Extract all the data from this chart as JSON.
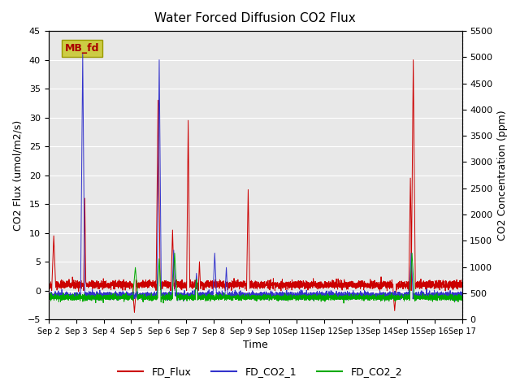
{
  "title": "Water Forced Diffusion CO2 Flux",
  "xlabel": "Time",
  "ylabel_left": "CO2 Flux (umol/m2/s)",
  "ylabel_right": "CO2 Concentration (ppm)",
  "ylim_left": [
    -5,
    45
  ],
  "ylim_right": [
    0,
    5500
  ],
  "yticks_left": [
    -5,
    0,
    5,
    10,
    15,
    20,
    25,
    30,
    35,
    40,
    45
  ],
  "yticks_right": [
    0,
    500,
    1000,
    1500,
    2000,
    2500,
    3000,
    3500,
    4000,
    4500,
    5000,
    5500
  ],
  "xtick_labels": [
    "Sep 2",
    "Sep 3",
    "Sep 4",
    "Sep 5",
    "Sep 6",
    "Sep 7",
    "Sep 8",
    "Sep 9",
    "Sep 10",
    "Sep 11",
    "Sep 12",
    "Sep 13",
    "Sep 14",
    "Sep 15",
    "Sep 16",
    "Sep 17"
  ],
  "background_color": "#e8e8e8",
  "grid_color": "#ffffff",
  "legend_labels": [
    "FD_Flux",
    "FD_CO2_1",
    "FD_CO2_2"
  ],
  "legend_colors": [
    "#cc0000",
    "#3333cc",
    "#00aa00"
  ],
  "mb_fd_box_color": "#cccc44",
  "mb_fd_text_color": "#aa0000",
  "n_days": 15,
  "n_points": 3600,
  "seed": 42
}
